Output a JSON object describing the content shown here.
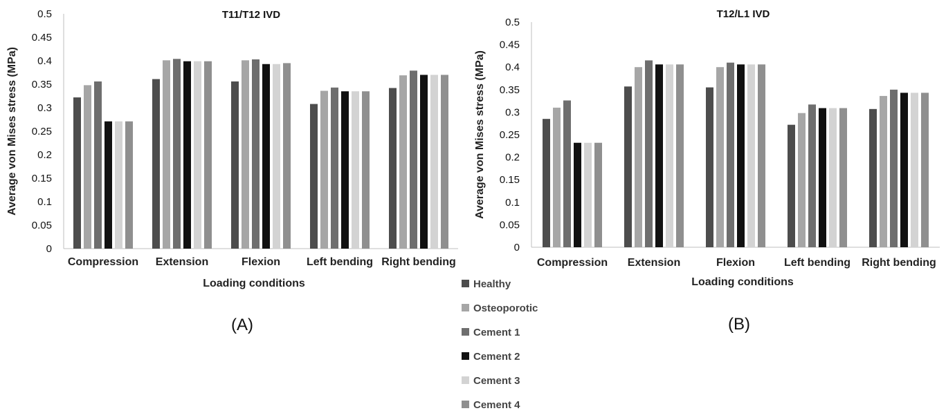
{
  "panel_labels": [
    "(A)",
    "(B)"
  ],
  "legend": [
    {
      "label": "Healthy",
      "color": "#4d4d4d"
    },
    {
      "label": "Osteoporotic",
      "color": "#a6a6a6"
    },
    {
      "label": "Cement 1",
      "color": "#6e6e6e"
    },
    {
      "label": "Cement 2",
      "color": "#111111"
    },
    {
      "label": "Cement 3",
      "color": "#d3d3d3"
    },
    {
      "label": "Cement 4",
      "color": "#8f8f8f"
    }
  ],
  "chart_data": [
    {
      "type": "bar",
      "title": "T11/T12 IVD",
      "xlabel": "Loading conditions",
      "ylabel": "Average von Mises stress (MPa)",
      "ylim": [
        0,
        0.5
      ],
      "yticks": [
        "0",
        "0.05",
        "0.1",
        "0.15",
        "0.2",
        "0.25",
        "0.3",
        "0.35",
        "0.4",
        "0.45",
        "0.5"
      ],
      "grid": false,
      "categories": [
        "Compression",
        "Extension",
        "Flexion",
        "Left bending",
        "Right bending"
      ],
      "series": [
        {
          "name": "Healthy",
          "values": [
            0.322,
            0.361,
            0.356,
            0.308,
            0.342
          ]
        },
        {
          "name": "Osteoporotic",
          "values": [
            0.348,
            0.401,
            0.401,
            0.336,
            0.369
          ]
        },
        {
          "name": "Cement 1",
          "values": [
            0.356,
            0.404,
            0.403,
            0.343,
            0.379
          ]
        },
        {
          "name": "Cement 2",
          "values": [
            0.271,
            0.399,
            0.393,
            0.335,
            0.37
          ]
        },
        {
          "name": "Cement 3",
          "values": [
            0.271,
            0.399,
            0.393,
            0.335,
            0.37
          ]
        },
        {
          "name": "Cement 4",
          "values": [
            0.271,
            0.399,
            0.395,
            0.335,
            0.37
          ]
        }
      ]
    },
    {
      "type": "bar",
      "title": "T12/L1 IVD",
      "xlabel": "Loading conditions",
      "ylabel": "Average von Mises stress (MPa)",
      "ylim": [
        0,
        0.5
      ],
      "yticks": [
        "0",
        "0.05",
        "0.1",
        "0.15",
        "0.2",
        "0.25",
        "0.3",
        "0.35",
        "0.4",
        "0.45",
        "0.5"
      ],
      "grid": false,
      "categories": [
        "Compression",
        "Extension",
        "Flexion",
        "Left bending",
        "Right bending"
      ],
      "series": [
        {
          "name": "Healthy",
          "values": [
            0.285,
            0.357,
            0.355,
            0.272,
            0.307
          ]
        },
        {
          "name": "Osteoporotic",
          "values": [
            0.31,
            0.4,
            0.4,
            0.298,
            0.336
          ]
        },
        {
          "name": "Cement 1",
          "values": [
            0.326,
            0.415,
            0.41,
            0.317,
            0.35
          ]
        },
        {
          "name": "Cement 2",
          "values": [
            0.232,
            0.406,
            0.406,
            0.309,
            0.343
          ]
        },
        {
          "name": "Cement 3",
          "values": [
            0.232,
            0.406,
            0.406,
            0.309,
            0.343
          ]
        },
        {
          "name": "Cement 4",
          "values": [
            0.232,
            0.406,
            0.406,
            0.309,
            0.343
          ]
        }
      ]
    }
  ]
}
